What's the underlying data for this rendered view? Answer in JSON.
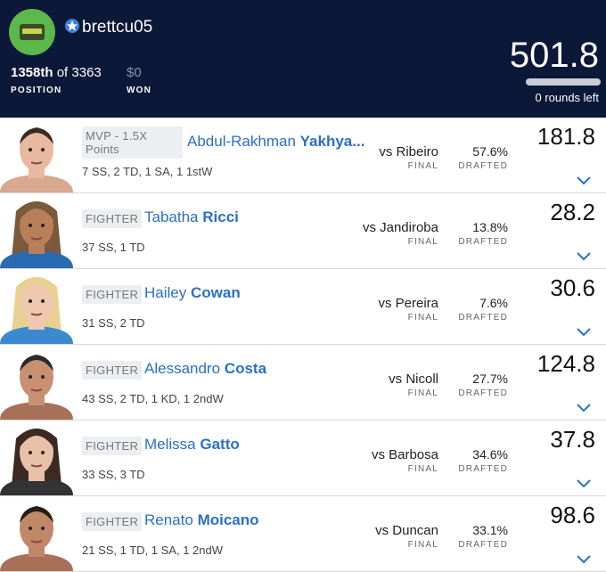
{
  "header": {
    "username": "brettcu05",
    "rank": "1358th",
    "of_total": "of 3363",
    "winnings": "$0",
    "position_label": "POSITION",
    "won_label": "WON",
    "score": "501.8",
    "rounds_left": "0 rounds left"
  },
  "rows": [
    {
      "tag": "MVP - 1.5X Points",
      "first_name": "Abdul-Rakhman",
      "last_name": "Yakhya...",
      "stats": "7 SS, 2 TD, 1 SA, 1 1stW",
      "opponent": "vs Ribeiro",
      "result": "FINAL",
      "drafted_pct": "57.6%",
      "drafted_label": "DRAFTED",
      "points": "181.8"
    },
    {
      "tag": "FIGHTER",
      "first_name": "Tabatha",
      "last_name": "Ricci",
      "stats": "37 SS, 1 TD",
      "opponent": "vs Jandiroba",
      "result": "FINAL",
      "drafted_pct": "13.8%",
      "drafted_label": "DRAFTED",
      "points": "28.2"
    },
    {
      "tag": "FIGHTER",
      "first_name": "Hailey",
      "last_name": "Cowan",
      "stats": "31 SS, 2 TD",
      "opponent": "vs Pereira",
      "result": "FINAL",
      "drafted_pct": "7.6%",
      "drafted_label": "DRAFTED",
      "points": "30.6"
    },
    {
      "tag": "FIGHTER",
      "first_name": "Alessandro",
      "last_name": "Costa",
      "stats": "43 SS, 2 TD, 1 KD, 1 2ndW",
      "opponent": "vs Nicoll",
      "result": "FINAL",
      "drafted_pct": "27.7%",
      "drafted_label": "DRAFTED",
      "points": "124.8"
    },
    {
      "tag": "FIGHTER",
      "first_name": "Melissa",
      "last_name": "Gatto",
      "stats": "33 SS, 3 TD",
      "opponent": "vs Barbosa",
      "result": "FINAL",
      "drafted_pct": "34.6%",
      "drafted_label": "DRAFTED",
      "points": "37.8"
    },
    {
      "tag": "FIGHTER",
      "first_name": "Renato",
      "last_name": "Moicano",
      "stats": "21 SS, 1 TD, 1 SA, 1 2ndW",
      "opponent": "vs Duncan",
      "result": "FINAL",
      "drafted_pct": "33.1%",
      "drafted_label": "DRAFTED",
      "points": "98.6"
    }
  ]
}
